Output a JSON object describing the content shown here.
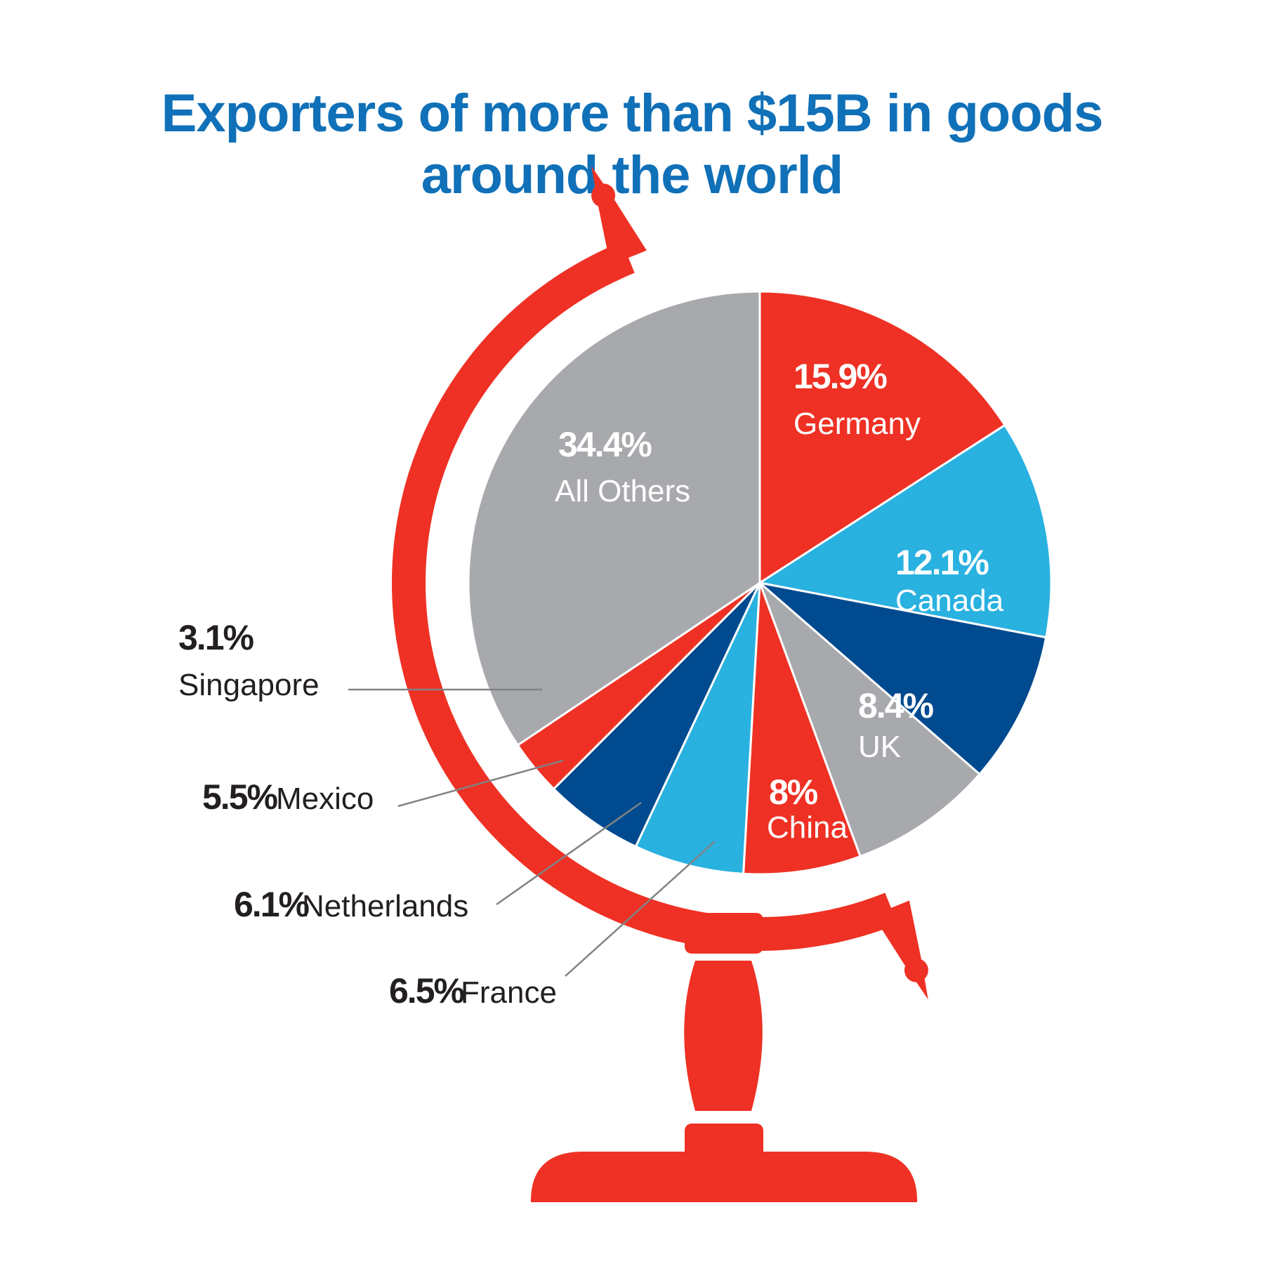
{
  "chart_data": {
    "type": "pie",
    "title": "Exporters of more than $15B in goods around the world",
    "title_lines": [
      "Exporters of more than $15B in goods",
      "around the world"
    ],
    "slices": [
      {
        "label": "Germany",
        "value": 15.9,
        "display": "15.9%",
        "color": "#ee3124"
      },
      {
        "label": "Canada",
        "value": 12.1,
        "display": "12.1%",
        "color": "#29b1e0"
      },
      {
        "label": "UK",
        "value": 8.4,
        "display": "8.4%",
        "color": "#004a8f"
      },
      {
        "label": "China",
        "value": 8,
        "display": "8%",
        "color": "#a7a9ac"
      },
      {
        "label": "France",
        "value": 6.5,
        "display": "6.5%",
        "color": "#ee3124"
      },
      {
        "label": "Netherlands",
        "value": 6.1,
        "display": "6.1%",
        "color": "#29b1e0"
      },
      {
        "label": "Mexico",
        "value": 5.5,
        "display": "5.5%",
        "color": "#004a8f"
      },
      {
        "label": "Singapore",
        "value": 3.1,
        "display": "3.1%",
        "color": "#ee3124"
      },
      {
        "label": "All Others",
        "value": 34.4,
        "display": "34.4%",
        "color": "#a7a9ac"
      }
    ],
    "start": "12 o'clock",
    "direction": "clockwise",
    "decoration": "slices drawn on a globe; red globe stand",
    "legend": "none"
  },
  "colors": {
    "title": "#1070b8",
    "stand": "#ee3124",
    "leader_line": "#808285",
    "label_dark": "#231f20"
  }
}
